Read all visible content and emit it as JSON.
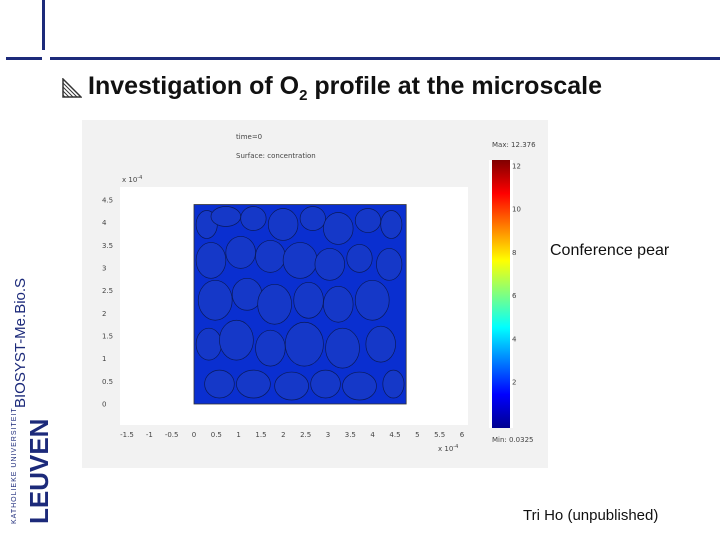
{
  "slide": {
    "title_main": "Investigation of O",
    "title_sub": "2",
    "title_rest": " profile at the microscale",
    "sidebar_label": "BIOSYST-Me.Bio.S",
    "logo_text": "LEUVEN",
    "logo_small": "KATHOLIEKE UNIVERSITEIT",
    "side_label": "Conference pear",
    "credit": "Tri Ho (unpublished)",
    "title_icon": "hatched-triangle-icon"
  },
  "chart_data": {
    "type": "heatmap",
    "header_line1": "time=0",
    "header_line2": "Surface: concentration",
    "y_exponent": "x 10",
    "y_exponent_power": "-4",
    "x_exponent": "x 10",
    "x_exponent_power": "-4",
    "y_ticks": [
      "4.5",
      "4",
      "3.5",
      "3",
      "2.5",
      "2",
      "1.5",
      "1",
      "0.5",
      "0"
    ],
    "x_ticks": [
      "-1.5",
      "-1",
      "-0.5",
      "0",
      "0.5",
      "1",
      "1.5",
      "2",
      "2.5",
      "3",
      "3.5",
      "4",
      "4.5",
      "5",
      "5.5",
      "6"
    ],
    "xlim": [
      -1.5,
      6
    ],
    "ylim": [
      0,
      4.5
    ],
    "domain": {
      "x": [
        0,
        4.75
      ],
      "y": [
        0,
        4.4
      ]
    },
    "colorbar_max_label": "Max: 12.376",
    "colorbar_min_label": "Min: 0.0325",
    "colorbar_ticks": [
      "12",
      "10",
      "8",
      "6",
      "4",
      "2"
    ],
    "colors": {
      "background": "#0a2fd0",
      "cell": "#1538c8",
      "cell_edge": "#0a1a5a",
      "frame": "#f2f2f2"
    }
  }
}
